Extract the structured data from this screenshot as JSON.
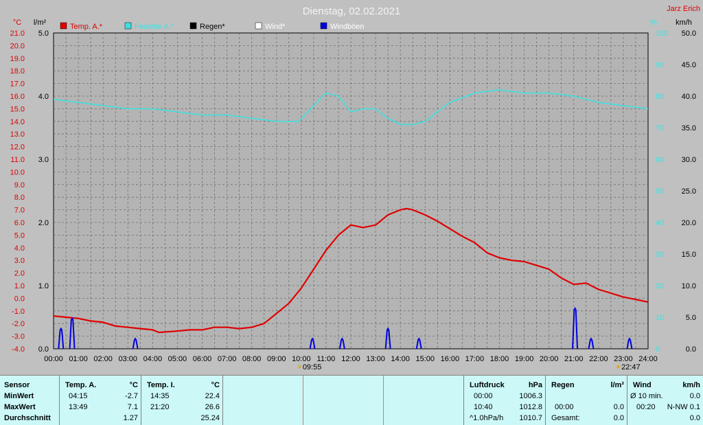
{
  "chart_data": {
    "type": "line",
    "title": "Dienstag, 02.02.2021",
    "author": "Jarz Erich",
    "x_ticks": [
      "00:00",
      "01:00",
      "02:00",
      "03:00",
      "04:00",
      "05:00",
      "06:00",
      "07:00",
      "08:00",
      "09:00",
      "10:00",
      "11:00",
      "12:00",
      "13:00",
      "14:00",
      "15:00",
      "16:00",
      "17:00",
      "18:00",
      "19:00",
      "20:00",
      "21:00",
      "22:00",
      "23:00",
      "24:00"
    ],
    "axes": {
      "temp": {
        "unit_label": "°C",
        "range": [
          -4,
          21
        ],
        "ticks": [
          "21.0",
          "20.0",
          "19.0",
          "18.0",
          "17.0",
          "16.0",
          "15.0",
          "14.0",
          "13.0",
          "12.0",
          "11.0",
          "10.0",
          "9.0",
          "8.0",
          "7.0",
          "6.0",
          "5.0",
          "4.0",
          "3.0",
          "2.0",
          "1.0",
          "0.0",
          "-1.0",
          "-2.0",
          "-3.0",
          "-4.0"
        ]
      },
      "rain": {
        "unit_label": "l/m²",
        "range": [
          0,
          5
        ],
        "ticks": [
          "5.0",
          "4.0",
          "3.0",
          "2.0",
          "1.0",
          "0.0"
        ]
      },
      "humidity": {
        "unit_label": "%",
        "range": [
          0,
          100
        ],
        "ticks": [
          "100",
          "90",
          "80",
          "70",
          "60",
          "50",
          "40",
          "30",
          "20",
          "10",
          "0"
        ]
      },
      "wind": {
        "unit_label": "km/h",
        "range": [
          0,
          50
        ],
        "ticks": [
          "50.0",
          "45.0",
          "40.0",
          "35.0",
          "30.0",
          "25.0",
          "20.0",
          "15.0",
          "10.0",
          "5.0",
          "0.0"
        ]
      }
    },
    "legend": [
      "Temp. A.*",
      "Feuchte A.*",
      "Regen*",
      "Wind*",
      "Windböen"
    ],
    "series": [
      {
        "name": "Temp. A.*",
        "color": "#e00000",
        "axis": "temp",
        "x": [
          0,
          0.5,
          1,
          1.5,
          2,
          2.5,
          3,
          3.5,
          4,
          4.25,
          5,
          5.5,
          6,
          6.5,
          7,
          7.5,
          8,
          8.5,
          9,
          9.5,
          10,
          10.5,
          11,
          11.5,
          12,
          12.5,
          13,
          13.5,
          14,
          14.25,
          14.5,
          15,
          15.5,
          16,
          16.5,
          17,
          17.5,
          18,
          18.5,
          19,
          19.5,
          20,
          20.5,
          21,
          21.5,
          22,
          22.5,
          23,
          23.5,
          24
        ],
        "y": [
          -1.4,
          -1.5,
          -1.6,
          -1.8,
          -1.9,
          -2.2,
          -2.3,
          -2.4,
          -2.5,
          -2.7,
          -2.6,
          -2.5,
          -2.5,
          -2.3,
          -2.3,
          -2.4,
          -2.3,
          -2.0,
          -1.2,
          -0.4,
          0.8,
          2.3,
          3.8,
          5.0,
          5.8,
          5.6,
          5.8,
          6.6,
          7.0,
          7.1,
          7.0,
          6.6,
          6.1,
          5.5,
          4.9,
          4.4,
          3.6,
          3.2,
          3.0,
          2.9,
          2.6,
          2.3,
          1.6,
          1.1,
          1.2,
          0.7,
          0.4,
          0.1,
          -0.1,
          -0.3
        ]
      },
      {
        "name": "Feuchte A.*",
        "color": "#40e0e0",
        "axis": "humidity",
        "x": [
          0,
          1,
          2,
          3,
          4,
          5,
          6,
          7,
          8,
          9,
          9.9,
          10.5,
          11,
          11.5,
          12,
          12.5,
          13,
          13.5,
          14,
          14.5,
          15,
          15.5,
          16,
          17,
          18,
          19,
          20,
          21,
          22,
          23,
          24
        ],
        "y": [
          79,
          78,
          77,
          76,
          76,
          75,
          74,
          74,
          73,
          72,
          72,
          77,
          81,
          80,
          75,
          76,
          76,
          73,
          71,
          71,
          72,
          75,
          78,
          81,
          82,
          81,
          81,
          80,
          78,
          77,
          76
        ]
      },
      {
        "name": "Windböen",
        "color": "#0000e0",
        "axis": "wind",
        "peaks": [
          [
            0.3,
            3.2
          ],
          [
            0.75,
            4.8
          ],
          [
            3.3,
            1.6
          ],
          [
            10.45,
            1.6
          ],
          [
            11.65,
            1.6
          ],
          [
            13.5,
            3.2
          ],
          [
            14.75,
            1.6
          ],
          [
            21.05,
            6.4
          ],
          [
            21.7,
            1.6
          ],
          [
            23.25,
            1.6
          ]
        ]
      }
    ],
    "markers": [
      {
        "time": "09:55",
        "label": "09:55"
      },
      {
        "time": "22:47",
        "label": "22:47"
      }
    ],
    "grid": true
  },
  "stats": {
    "sensor": {
      "header": "Sensor",
      "rows": [
        "MinWert",
        "MaxWert",
        "Durchschnitt"
      ]
    },
    "temp_a": {
      "header": "Temp. A.",
      "unit": "°C",
      "min_time": "04:15",
      "min_val": "-2.7",
      "max_time": "13:49",
      "max_val": "7.1",
      "avg": "1.27"
    },
    "temp_i": {
      "header": "Temp. I.",
      "unit": "°C",
      "min_time": "14:35",
      "min_val": "22.4",
      "max_time": "21:20",
      "max_val": "26.6",
      "avg": "25.24"
    },
    "pressure": {
      "header": "Luftdruck",
      "unit": "hPa",
      "r1_label": "00:00",
      "r1_val": "1006.3",
      "r2_label": "10:40",
      "r2_val": "1012.8",
      "r3_label": "^1.0hPa/h",
      "r3_val": "1010.7"
    },
    "rain": {
      "header": "Regen",
      "unit": "l/m²",
      "r2_label": "00:00",
      "r2_val": "0.0",
      "r3_label": "Gesamt:",
      "r3_val": "0.0"
    },
    "wind": {
      "header": "Wind",
      "unit": "km/h",
      "r1_label": "Ø 10 min.",
      "r1_val": "0.0",
      "r2_label": "00:20",
      "r2_val": "N-NW 0.1",
      "r3_val": "0.0"
    }
  }
}
